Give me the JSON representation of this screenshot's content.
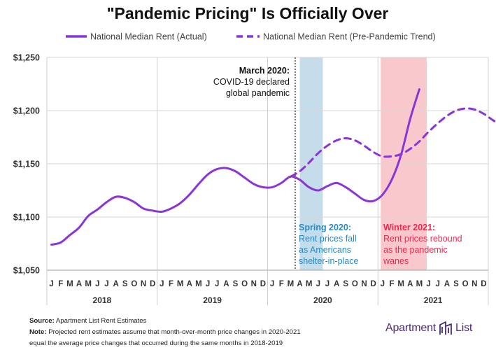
{
  "chart_data": {
    "type": "line",
    "title": "\"Pandemic Pricing\" Is Officially Over",
    "ylim": [
      1050,
      1250
    ],
    "yticks": [
      "$1,050",
      "$1,100",
      "$1,150",
      "$1,200",
      "$1,250"
    ],
    "ytick_values": [
      1050,
      1100,
      1150,
      1200,
      1250
    ],
    "month_labels": [
      "J",
      "F",
      "M",
      "A",
      "M",
      "J",
      "J",
      "A",
      "S",
      "O",
      "N",
      "D",
      "J",
      "F",
      "M",
      "A",
      "M",
      "J",
      "J",
      "A",
      "S",
      "O",
      "N",
      "D",
      "J",
      "F",
      "M",
      "A",
      "M",
      "J",
      "J",
      "A",
      "S",
      "O",
      "N",
      "D",
      "J",
      "F",
      "M",
      "A",
      "M",
      "J",
      "J",
      "A",
      "S",
      "O",
      "N",
      "D"
    ],
    "years": [
      "2018",
      "2019",
      "2020",
      "2021"
    ],
    "grid": true,
    "legend_position": "top",
    "series": [
      {
        "name": "National Median Rent (Actual)",
        "style": "solid",
        "color": "#8a35d6",
        "values": [
          1074,
          1076,
          1083,
          1090,
          1101,
          1107,
          1114,
          1119,
          1118,
          1114,
          1108,
          1106,
          1105,
          1108,
          1113,
          1121,
          1131,
          1140,
          1145,
          1146,
          1143,
          1137,
          1131,
          1128,
          1128,
          1132,
          1138,
          1135,
          1128,
          1125,
          1129,
          1132,
          1128,
          1122,
          1116,
          1115,
          1121,
          1135,
          1158,
          1192,
          1220
        ]
      },
      {
        "name": "National Median Rent (Pre-Pandemic Trend)",
        "style": "dashed",
        "color": "#8a35d6",
        "start_index": 26,
        "values": [
          1138,
          1143,
          1151,
          1160,
          1167,
          1172,
          1174,
          1172,
          1167,
          1161,
          1157,
          1157,
          1159,
          1164,
          1171,
          1180,
          1188,
          1195,
          1200,
          1202,
          1201,
          1197,
          1191,
          1186
        ]
      }
    ],
    "shaded_regions": [
      {
        "name": "spring-2020",
        "start_index": 27,
        "end_index": 29.5,
        "color": "#c5dceb"
      },
      {
        "name": "winter-2021",
        "start_index": 35.8,
        "end_index": 40.8,
        "color": "#f8c8cd"
      }
    ],
    "vline": {
      "index": 26.5,
      "style": "dotted"
    },
    "annotations": [
      {
        "name": "march-2020",
        "color": "#111111",
        "title": "March 2020:",
        "lines": [
          "COVID-19 declared",
          "global pandemic"
        ]
      },
      {
        "name": "spring-2020",
        "color": "#2b88c0",
        "title": "Spring 2020:",
        "lines": [
          "Rent prices fall",
          "as Americans",
          "shelter-in-place"
        ]
      },
      {
        "name": "winter-2021",
        "color": "#ee2a4e",
        "title": "Winter 2021:",
        "lines": [
          "Rent prices rebound",
          "as the pandemic",
          "wanes"
        ]
      }
    ]
  },
  "footer": {
    "source_label": "Source:",
    "source_text": "Apartment List Rent Estimates",
    "note_label": "Note:",
    "note_line1": "Projected rent estimates assume that month-over-month price changes in 2020-2021",
    "note_line2": "equal the average price changes that occurred during the same months in 2018-2019"
  },
  "brand": {
    "name_left": "Apartment",
    "name_right": "List",
    "color": "#4b2a78"
  }
}
